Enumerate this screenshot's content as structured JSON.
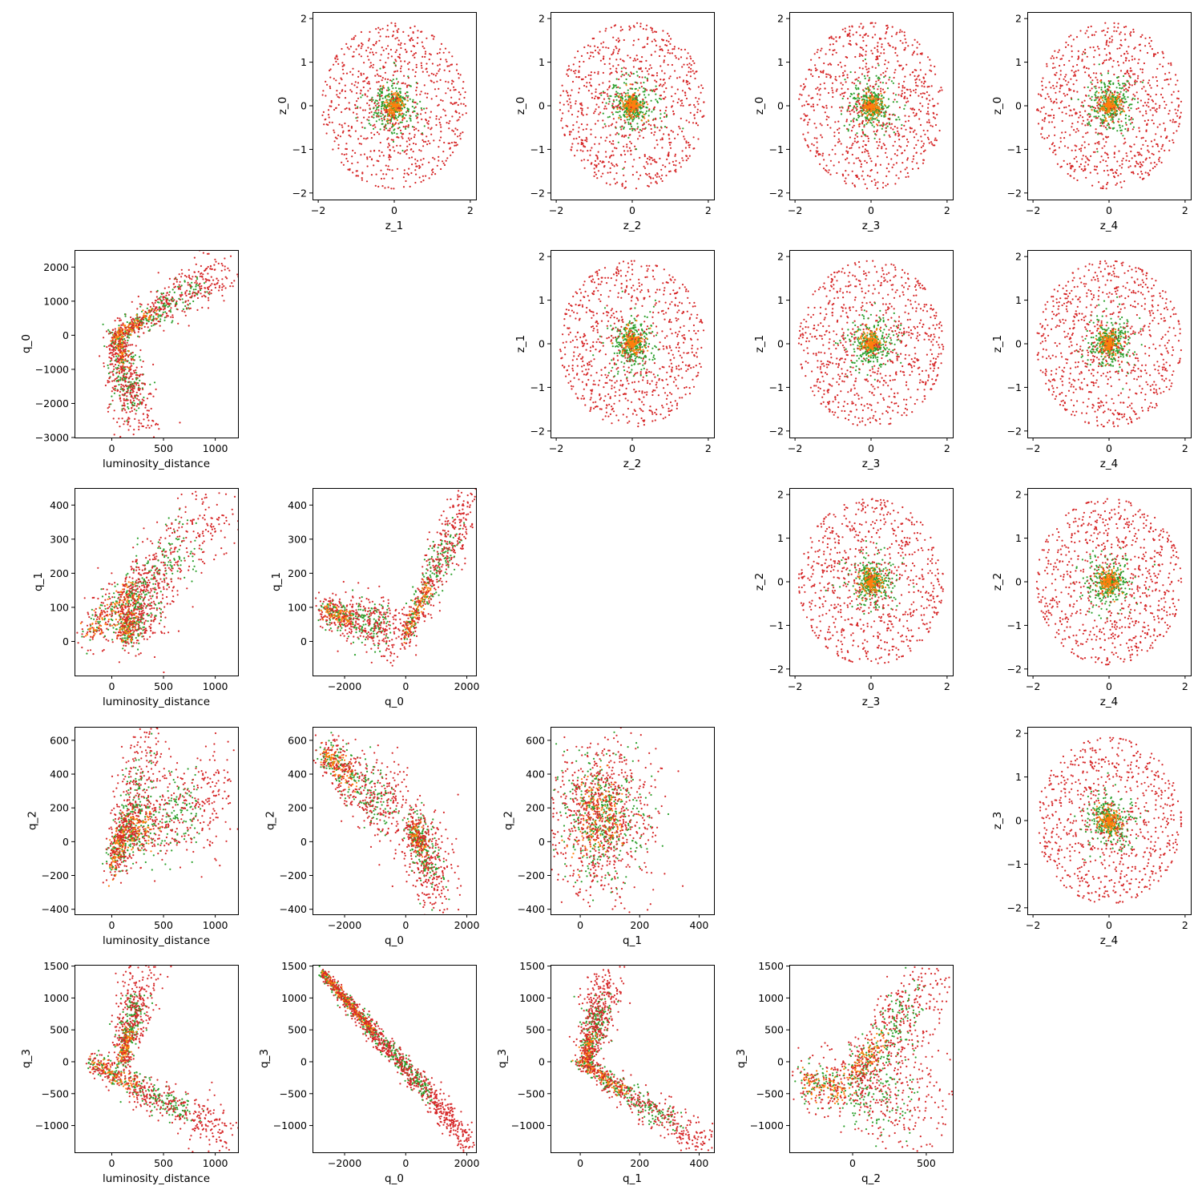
{
  "chart_data": {
    "type": "scatter",
    "layout": "pair-grid",
    "colors": {
      "outer": "#d62728",
      "middle": "#2ca02c",
      "inner": "#ff7f0e"
    },
    "series": [
      {
        "color": "#d62728",
        "sigma": 1.0
      },
      {
        "color": "#2ca02c",
        "sigma": 0.5
      },
      {
        "color": "#ff7f0e",
        "sigma": 0.25
      }
    ],
    "panels": [
      {
        "row": 0,
        "col": 1,
        "xlabel": "z_1",
        "ylabel": "z_0",
        "xlim": [
          -2.15,
          2.15
        ],
        "ylim": [
          -2.15,
          2.15
        ],
        "xticks": [
          -2,
          0,
          2
        ],
        "yticks": [
          -2,
          -1,
          0,
          1,
          2
        ],
        "shape": "disk"
      },
      {
        "row": 0,
        "col": 2,
        "xlabel": "z_2",
        "ylabel": "z_0",
        "xlim": [
          -2.15,
          2.15
        ],
        "ylim": [
          -2.15,
          2.15
        ],
        "xticks": [
          -2,
          0,
          2
        ],
        "yticks": [
          -2,
          -1,
          0,
          1,
          2
        ],
        "shape": "disk"
      },
      {
        "row": 0,
        "col": 3,
        "xlabel": "z_3",
        "ylabel": "z_0",
        "xlim": [
          -2.15,
          2.15
        ],
        "ylim": [
          -2.15,
          2.15
        ],
        "xticks": [
          -2,
          0,
          2
        ],
        "yticks": [
          -2,
          -1,
          0,
          1,
          2
        ],
        "shape": "disk"
      },
      {
        "row": 0,
        "col": 4,
        "xlabel": "z_4",
        "ylabel": "z_0",
        "xlim": [
          -2.15,
          2.15
        ],
        "ylim": [
          -2.15,
          2.15
        ],
        "xticks": [
          -2,
          0,
          2
        ],
        "yticks": [
          -2,
          -1,
          0,
          1,
          2
        ],
        "shape": "disk"
      },
      {
        "row": 1,
        "col": 0,
        "xlabel": "luminosity_distance",
        "ylabel": "q_0",
        "xlim": [
          -360,
          1220
        ],
        "ylim": [
          -3000,
          2500
        ],
        "xticks": [
          0,
          500,
          1000
        ],
        "yticks": [
          -3000,
          -2000,
          -1000,
          0,
          1000,
          2000
        ],
        "shape": "branch2",
        "armA": [
          [
            50,
            0
          ],
          [
            260,
            -2650
          ]
        ],
        "armB": [
          [
            50,
            0
          ],
          [
            1100,
            1900
          ]
        ],
        "center": [
          100,
          150
        ],
        "spread": [
          0.06,
          0.05
        ]
      },
      {
        "row": 1,
        "col": 2,
        "xlabel": "z_2",
        "ylabel": "z_1",
        "xlim": [
          -2.15,
          2.15
        ],
        "ylim": [
          -2.15,
          2.15
        ],
        "xticks": [
          -2,
          0,
          2
        ],
        "yticks": [
          -2,
          -1,
          0,
          1,
          2
        ],
        "shape": "disk"
      },
      {
        "row": 1,
        "col": 3,
        "xlabel": "z_3",
        "ylabel": "z_1",
        "xlim": [
          -2.15,
          2.15
        ],
        "ylim": [
          -2.15,
          2.15
        ],
        "xticks": [
          -2,
          0,
          2
        ],
        "yticks": [
          -2,
          -1,
          0,
          1,
          2
        ],
        "shape": "disk"
      },
      {
        "row": 1,
        "col": 4,
        "xlabel": "z_4",
        "ylabel": "z_1",
        "xlim": [
          -2.15,
          2.15
        ],
        "ylim": [
          -2.15,
          2.15
        ],
        "xticks": [
          -2,
          0,
          2
        ],
        "yticks": [
          -2,
          -1,
          0,
          1,
          2
        ],
        "shape": "disk"
      },
      {
        "row": 2,
        "col": 0,
        "xlabel": "luminosity_distance",
        "ylabel": "q_1",
        "xlim": [
          -360,
          1220
        ],
        "ylim": [
          -100,
          450
        ],
        "xticks": [
          0,
          500,
          1000
        ],
        "yticks": [
          0,
          100,
          200,
          300,
          400
        ],
        "shape": "branch2",
        "armA": [
          [
            -250,
            20
          ],
          [
            1100,
            400
          ]
        ],
        "armB": [
          [
            100,
            20
          ],
          [
            400,
            160
          ]
        ],
        "center": [
          250,
          80
        ],
        "spread": [
          0.07,
          0.09
        ]
      },
      {
        "row": 2,
        "col": 1,
        "xlabel": "q_0",
        "ylabel": "q_1",
        "xlim": [
          -3050,
          2300
        ],
        "ylim": [
          -100,
          450
        ],
        "xticks": [
          -2000,
          0,
          2000
        ],
        "yticks": [
          0,
          100,
          200,
          300,
          400
        ],
        "shape": "branch2",
        "armA": [
          [
            -2700,
            90
          ],
          [
            0,
            20
          ]
        ],
        "armB": [
          [
            0,
            20
          ],
          [
            2100,
            420
          ]
        ],
        "center": [
          0,
          40
        ],
        "spread": [
          0.04,
          0.07
        ]
      },
      {
        "row": 2,
        "col": 3,
        "xlabel": "z_3",
        "ylabel": "z_2",
        "xlim": [
          -2.15,
          2.15
        ],
        "ylim": [
          -2.15,
          2.15
        ],
        "xticks": [
          -2,
          0,
          2
        ],
        "yticks": [
          -2,
          -1,
          0,
          1,
          2
        ],
        "shape": "disk"
      },
      {
        "row": 2,
        "col": 4,
        "xlabel": "z_4",
        "ylabel": "z_2",
        "xlim": [
          -2.15,
          2.15
        ],
        "ylim": [
          -2.15,
          2.15
        ],
        "xticks": [
          -2,
          0,
          2
        ],
        "yticks": [
          -2,
          -1,
          0,
          1,
          2
        ],
        "shape": "disk"
      },
      {
        "row": 3,
        "col": 0,
        "xlabel": "luminosity_distance",
        "ylabel": "q_2",
        "xlim": [
          -360,
          1220
        ],
        "ylim": [
          -430,
          680
        ],
        "xticks": [
          0,
          500,
          1000
        ],
        "yticks": [
          -400,
          -200,
          0,
          200,
          400,
          600
        ],
        "shape": "branch2",
        "armA": [
          [
            0,
            -150
          ],
          [
            420,
            580
          ]
        ],
        "armB": [
          [
            50,
            0
          ],
          [
            1100,
            300
          ]
        ],
        "center": [
          200,
          80
        ],
        "spread": [
          0.05,
          0.12
        ]
      },
      {
        "row": 3,
        "col": 1,
        "xlabel": "q_0",
        "ylabel": "q_2",
        "xlim": [
          -3050,
          2300
        ],
        "ylim": [
          -430,
          680
        ],
        "xticks": [
          -2000,
          0,
          2000
        ],
        "yticks": [
          -400,
          -200,
          0,
          200,
          400,
          600
        ],
        "shape": "branch2",
        "armA": [
          [
            -2700,
            530
          ],
          [
            200,
            80
          ]
        ],
        "armB": [
          [
            200,
            80
          ],
          [
            1200,
            -250
          ]
        ],
        "center": [
          0,
          120
        ],
        "spread": [
          0.05,
          0.1
        ]
      },
      {
        "row": 3,
        "col": 2,
        "xlabel": "q_1",
        "ylabel": "q_2",
        "xlim": [
          -100,
          450
        ],
        "ylim": [
          -430,
          680
        ],
        "xticks": [
          0,
          200,
          400
        ],
        "yticks": [
          -400,
          -200,
          0,
          200,
          400,
          600
        ],
        "shape": "blob",
        "center": [
          70,
          150
        ],
        "spread": [
          0.12,
          0.16
        ]
      },
      {
        "row": 3,
        "col": 4,
        "xlabel": "z_4",
        "ylabel": "z_3",
        "xlim": [
          -2.15,
          2.15
        ],
        "ylim": [
          -2.15,
          2.15
        ],
        "xticks": [
          -2,
          0,
          2
        ],
        "yticks": [
          -2,
          -1,
          0,
          1,
          2
        ],
        "shape": "disk"
      },
      {
        "row": 4,
        "col": 0,
        "xlabel": "luminosity_distance",
        "ylabel": "q_3",
        "xlim": [
          -360,
          1220
        ],
        "ylim": [
          -1420,
          1520
        ],
        "xticks": [
          0,
          500,
          1000
        ],
        "yticks": [
          -1000,
          -500,
          0,
          500,
          1000,
          1500
        ],
        "shape": "branch2",
        "armA": [
          [
            100,
            0
          ],
          [
            300,
            1400
          ]
        ],
        "armB": [
          [
            -200,
            0
          ],
          [
            1100,
            -1150
          ]
        ],
        "center": [
          150,
          50
        ],
        "spread": [
          0.05,
          0.05
        ]
      },
      {
        "row": 4,
        "col": 1,
        "xlabel": "q_0",
        "ylabel": "q_3",
        "xlim": [
          -3050,
          2300
        ],
        "ylim": [
          -1420,
          1520
        ],
        "xticks": [
          -2000,
          0,
          2000
        ],
        "yticks": [
          -1000,
          -500,
          0,
          500,
          1000,
          1500
        ],
        "shape": "line",
        "armA": [
          [
            -2750,
            1400
          ],
          [
            2100,
            -1250
          ]
        ],
        "spread": [
          0.015,
          0.035
        ]
      },
      {
        "row": 4,
        "col": 2,
        "xlabel": "q_1",
        "ylabel": "q_3",
        "xlim": [
          -100,
          450
        ],
        "ylim": [
          -1420,
          1520
        ],
        "xticks": [
          0,
          200,
          400
        ],
        "yticks": [
          -1000,
          -500,
          0,
          500,
          1000,
          1500
        ],
        "shape": "branch2",
        "armA": [
          [
            20,
            0
          ],
          [
            90,
            1300
          ]
        ],
        "armB": [
          [
            0,
            0
          ],
          [
            420,
            -1300
          ]
        ],
        "center": [
          30,
          0
        ],
        "spread": [
          0.05,
          0.04
        ]
      },
      {
        "row": 4,
        "col": 3,
        "xlabel": "q_2",
        "ylabel": "q_3",
        "xlim": [
          -430,
          680
        ],
        "ylim": [
          -1420,
          1520
        ],
        "xticks": [
          0,
          500
        ],
        "yticks": [
          -1000,
          -500,
          0,
          500,
          1000,
          1500
        ],
        "shape": "branch2",
        "armA": [
          [
            0,
            -200
          ],
          [
            600,
            1350
          ]
        ],
        "armB": [
          [
            -350,
            -300
          ],
          [
            600,
            -700
          ]
        ],
        "center": [
          50,
          -250
        ],
        "spread": [
          0.06,
          0.12
        ]
      }
    ]
  }
}
